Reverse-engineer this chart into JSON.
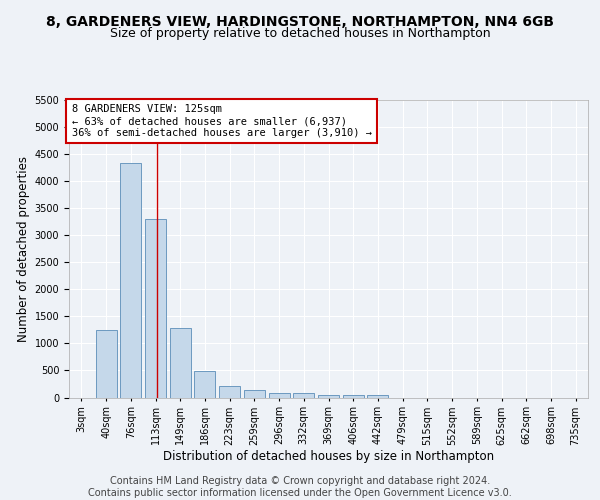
{
  "title": "8, GARDENERS VIEW, HARDINGSTONE, NORTHAMPTON, NN4 6GB",
  "subtitle": "Size of property relative to detached houses in Northampton",
  "xlabel": "Distribution of detached houses by size in Northampton",
  "ylabel": "Number of detached properties",
  "bar_labels": [
    "3sqm",
    "40sqm",
    "76sqm",
    "113sqm",
    "149sqm",
    "186sqm",
    "223sqm",
    "259sqm",
    "296sqm",
    "332sqm",
    "369sqm",
    "406sqm",
    "442sqm",
    "479sqm",
    "515sqm",
    "552sqm",
    "589sqm",
    "625sqm",
    "662sqm",
    "698sqm",
    "735sqm"
  ],
  "bar_indices": [
    0,
    1,
    2,
    3,
    4,
    5,
    6,
    7,
    8,
    9,
    10,
    11,
    12,
    13,
    14,
    15,
    16,
    17,
    18,
    19,
    20
  ],
  "bar_heights": [
    0,
    1255,
    4340,
    3300,
    1280,
    490,
    220,
    130,
    80,
    80,
    50,
    50,
    50,
    0,
    0,
    0,
    0,
    0,
    0,
    0,
    0
  ],
  "bar_color": "#c5d8ea",
  "bar_edgecolor": "#5b8db8",
  "ylim": [
    0,
    5500
  ],
  "yticks": [
    0,
    500,
    1000,
    1500,
    2000,
    2500,
    3000,
    3500,
    4000,
    4500,
    5000,
    5500
  ],
  "vline_index": 3.08,
  "vline_color": "#cc0000",
  "annotation_text": "8 GARDENERS VIEW: 125sqm\n← 63% of detached houses are smaller (6,937)\n36% of semi-detached houses are larger (3,910) →",
  "annotation_box_facecolor": "#ffffff",
  "annotation_box_edgecolor": "#cc0000",
  "footer_text": "Contains HM Land Registry data © Crown copyright and database right 2024.\nContains public sector information licensed under the Open Government Licence v3.0.",
  "background_color": "#eef2f7",
  "grid_color": "#ffffff",
  "title_fontsize": 10,
  "subtitle_fontsize": 9,
  "xlabel_fontsize": 8.5,
  "ylabel_fontsize": 8.5,
  "tick_fontsize": 7,
  "annotation_fontsize": 7.5,
  "footer_fontsize": 7
}
